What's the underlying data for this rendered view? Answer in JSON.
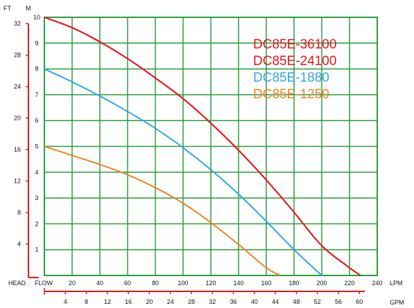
{
  "chart_data": {
    "type": "line",
    "title": "",
    "axes": {
      "head_m": {
        "label": "M",
        "ticks": [
          1,
          2,
          3,
          4,
          5,
          6,
          7,
          8,
          9,
          10
        ],
        "range": [
          0,
          10
        ]
      },
      "head_ft": {
        "label": "FT",
        "ticks": [
          4,
          8,
          12,
          16,
          20,
          24,
          28,
          32
        ]
      },
      "head_label": "HEAD",
      "flow_lpm": {
        "label": "FLOW",
        "unit": "LPM",
        "ticks": [
          20,
          40,
          60,
          80,
          100,
          120,
          140,
          160,
          180,
          200,
          220,
          240
        ],
        "range": [
          0,
          240
        ]
      },
      "flow_gpm": {
        "unit": "GPM",
        "ticks": [
          4,
          8,
          12,
          16,
          20,
          24,
          28,
          32,
          36,
          40,
          44,
          48,
          52,
          56,
          60
        ]
      }
    },
    "grid": true,
    "legend_position": "top-right",
    "series": [
      {
        "name": "DC85E-36100",
        "color": "#e8141c",
        "x": [
          0,
          20,
          40,
          60,
          80,
          100,
          120,
          140,
          160,
          180,
          200,
          220,
          228
        ],
        "y": [
          10,
          9.6,
          9.05,
          8.4,
          7.65,
          6.85,
          5.9,
          4.85,
          3.7,
          2.45,
          1.15,
          0.3,
          0
        ]
      },
      {
        "name": "DC85E-24100",
        "color": "#e8141c",
        "x": [
          0,
          20,
          40,
          60,
          80,
          100,
          120,
          140,
          160,
          180,
          200,
          220,
          228
        ],
        "y": [
          10,
          9.6,
          9.05,
          8.4,
          7.65,
          6.85,
          5.9,
          4.85,
          3.7,
          2.45,
          1.15,
          0.3,
          0
        ]
      },
      {
        "name": "DC85E-1880",
        "color": "#2fa7e0",
        "x": [
          0,
          20,
          40,
          60,
          80,
          100,
          120,
          140,
          160,
          180,
          200
        ],
        "y": [
          8,
          7.5,
          6.95,
          6.35,
          5.7,
          4.95,
          4.1,
          3.15,
          2.1,
          1.0,
          0
        ]
      },
      {
        "name": "DC85E-1250",
        "color": "#f0821e",
        "x": [
          0,
          20,
          40,
          60,
          80,
          100,
          120,
          140,
          160,
          170
        ],
        "y": [
          5,
          4.65,
          4.3,
          3.9,
          3.4,
          2.8,
          2.05,
          1.2,
          0.3,
          0
        ]
      }
    ]
  }
}
